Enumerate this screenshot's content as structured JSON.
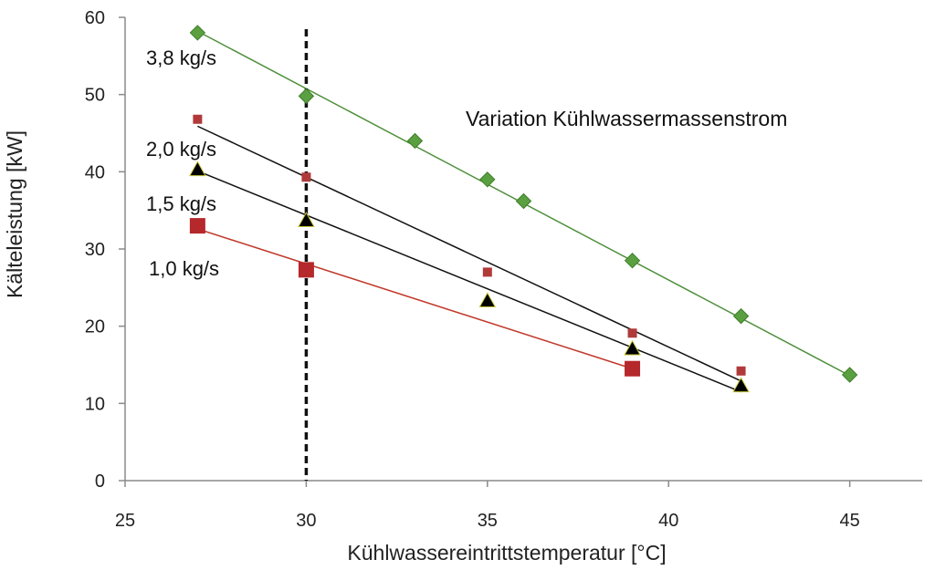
{
  "chart_data": {
    "type": "scatter",
    "title": "",
    "annotation": "Variation Kühlwassermassenstrom",
    "xlabel": "Kühlwassereintrittstemperatur [°C]",
    "ylabel": "Kälteleistung [kW]",
    "xlim": [
      25,
      47
    ],
    "ylim": [
      0,
      60
    ],
    "xticks": [
      25,
      30,
      35,
      40,
      45
    ],
    "yticks": [
      0,
      10,
      20,
      30,
      40,
      50,
      60
    ],
    "reference_line_x": 30,
    "series": [
      {
        "name": "3,8 kg/s",
        "marker": "diamond",
        "color": "#5aa040",
        "line_color": "#4e8f3a",
        "points": [
          [
            27,
            58
          ],
          [
            30,
            49.8
          ],
          [
            33,
            44
          ],
          [
            35,
            39
          ],
          [
            36,
            36.2
          ],
          [
            39,
            28.5
          ],
          [
            42,
            21.3
          ],
          [
            45,
            13.7
          ]
        ],
        "trend": [
          [
            27,
            58.2
          ],
          [
            45,
            13.6
          ]
        ]
      },
      {
        "name": "2,0 kg/s",
        "marker": "small-square",
        "color": "#b03a3a",
        "line_color": "#111111",
        "points": [
          [
            27,
            46.8
          ],
          [
            30,
            39.3
          ],
          [
            35,
            27
          ],
          [
            39,
            19.1
          ],
          [
            42,
            14.2
          ]
        ],
        "trend": [
          [
            27,
            45.9
          ],
          [
            42,
            12.9
          ]
        ]
      },
      {
        "name": "1,5 kg/s",
        "marker": "triangle",
        "color": "#000000",
        "line_color": "#111111",
        "points": [
          [
            27,
            40.3
          ],
          [
            30,
            33.7
          ],
          [
            35,
            23.3
          ],
          [
            39,
            17.1
          ],
          [
            42,
            12.3
          ]
        ],
        "trend": [
          [
            27,
            40.1
          ],
          [
            42,
            11.5
          ]
        ]
      },
      {
        "name": "1,0 kg/s",
        "marker": "large-square",
        "color": "#b5282b",
        "line_color": "#c0392b",
        "points": [
          [
            27,
            33
          ],
          [
            30,
            27.3
          ],
          [
            39,
            14.5
          ]
        ],
        "trend": [
          [
            27,
            32.6
          ],
          [
            39,
            14.5
          ]
        ]
      }
    ]
  }
}
